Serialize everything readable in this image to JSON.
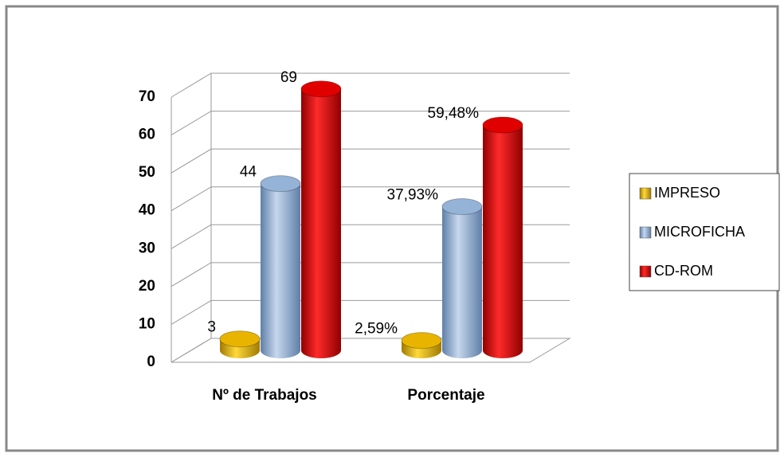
{
  "chart_data": {
    "type": "bar3d",
    "categories": [
      "Nº de Trabajos",
      "Porcentaje"
    ],
    "series": [
      {
        "name": "IMPRESO",
        "color": "#e8b400",
        "values": [
          3,
          2.59
        ],
        "value_labels": [
          "3",
          "2,59%"
        ]
      },
      {
        "name": "MICROFICHA",
        "color": "#95b3d7",
        "values": [
          44,
          37.93
        ],
        "value_labels": [
          "44",
          "37,93%"
        ]
      },
      {
        "name": "CD-ROM",
        "color": "#e00000",
        "values": [
          69,
          59.48
        ],
        "value_labels": [
          "69",
          "59,48%"
        ]
      }
    ],
    "ylim": [
      0,
      70
    ],
    "yticks": [
      0,
      10,
      20,
      30,
      40,
      50,
      60,
      70
    ],
    "grid": true,
    "legend": "right"
  }
}
